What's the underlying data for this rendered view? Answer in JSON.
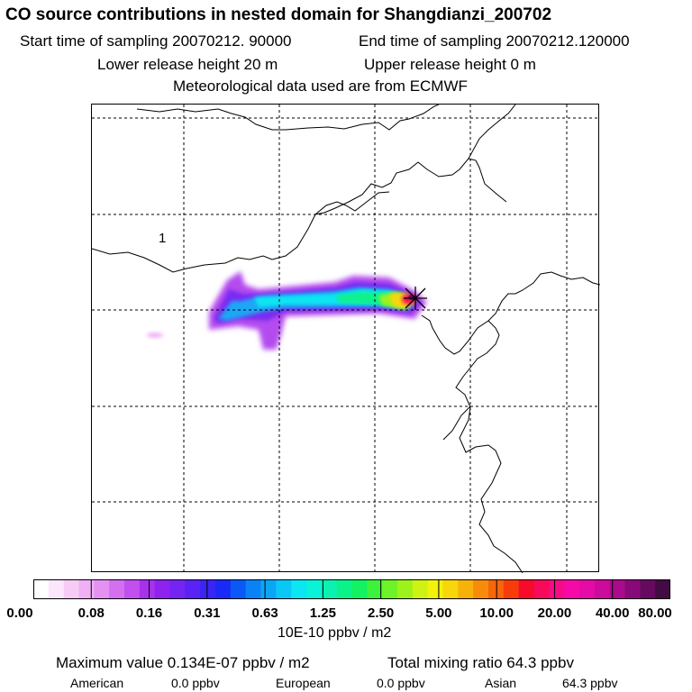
{
  "header": {
    "title": "CO  source contributions in nested domain for Shangdianzi_200702",
    "start_time": "Start time of sampling 20070212. 90000",
    "end_time": "End time of sampling 20070212.120000",
    "lower_release": "Lower release height   20 m",
    "upper_release": "Upper release height    0 m",
    "met_data": "Meteorological data used are from ECMWF"
  },
  "map": {
    "region_label": "1",
    "station": "Shangdianzi"
  },
  "colorbar": {
    "tick_labels": [
      "0.00",
      "0.08",
      "0.16",
      "0.31",
      "0.63",
      "1.25",
      "2.50",
      "5.00",
      "10.00",
      "20.00",
      "40.00",
      "80.00"
    ],
    "unit": "10E-10 ppbv / m2",
    "colors": [
      "#ffffff",
      "#fbe6fb",
      "#f6ccf6",
      "#efb0f5",
      "#e591f2",
      "#d46ff0",
      "#c150ee",
      "#a832ec",
      "#8e22ee",
      "#7425f2",
      "#5a22f4",
      "#3b24f6",
      "#1a2af6",
      "#0a58f6",
      "#0a82f6",
      "#0aa6f6",
      "#0ac8f6",
      "#0ae6f2",
      "#0af2d8",
      "#0af2b2",
      "#0af28a",
      "#12f262",
      "#3cf23c",
      "#6ef228",
      "#9ef21c",
      "#cef214",
      "#f2f20a",
      "#f7d60a",
      "#f7b20a",
      "#f78c0a",
      "#f7660a",
      "#f73c0a",
      "#f70a2a",
      "#f70a5a",
      "#f70a86",
      "#f50aa8",
      "#e60aa8",
      "#cc0a9c",
      "#aa0a8c",
      "#880a78",
      "#660a60",
      "#440a44"
    ]
  },
  "summary": {
    "max_value": "Maximum value  0.134E-07 ppbv / m2",
    "total": "Total mixing ratio      64.3 ppbv",
    "american_label": "American",
    "american_value": "0.0 ppbv",
    "european_label": "European",
    "european_value": "0.0 ppbv",
    "asian_label": "Asian",
    "asian_value": "64.3 ppbv"
  }
}
